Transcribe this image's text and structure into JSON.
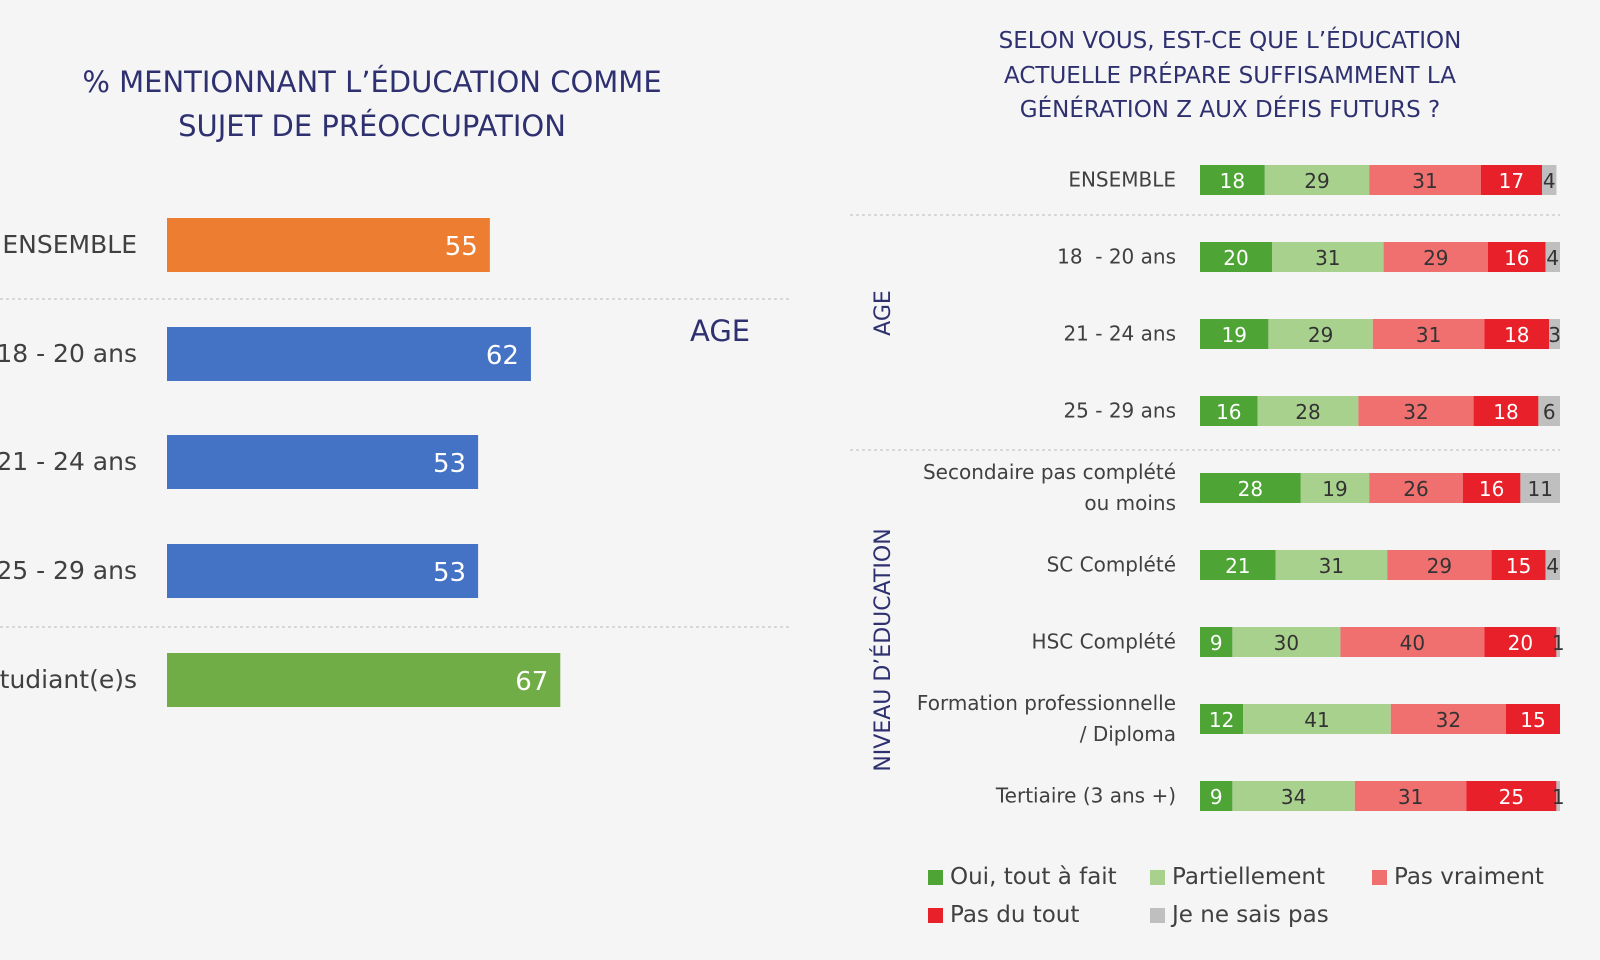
{
  "chart_data": [
    {
      "type": "bar",
      "orientation": "horizontal",
      "title": "% MENTIONNANT L’ÉDUCATION COMME SUJET DE PRÉOCCUPATION",
      "categories": [
        "ENSEMBLE",
        "18  - 20 ans",
        "21 - 24 ans",
        "25 - 29 ans",
        "Étudiant(e)s"
      ],
      "values": [
        55,
        62,
        53,
        53,
        67
      ],
      "colors": [
        "#ed7d31",
        "#4472c4",
        "#4472c4",
        "#4472c4",
        "#70ad47"
      ],
      "annotations": [
        "AGE"
      ]
    },
    {
      "type": "stacked-bar",
      "orientation": "horizontal",
      "title": "SELON VOUS, EST-CE QUE L’ÉDUCATION ACTUELLE PRÉPARE SUFFISAMMENT LA GÉNÉRATION Z AUX DÉFIS FUTURS ?",
      "categories": [
        "ENSEMBLE",
        "18  - 20 ans",
        "21 - 24 ans",
        "25 - 29 ans",
        "Secondaire pas complété\nou moins",
        "SC Complété",
        "HSC Complété",
        "Formation professionnelle\n/ Diploma",
        "Tertiaire (3 ans +)"
      ],
      "groups": [
        "AGE",
        "NIVEAU D’ÉDUCATION"
      ],
      "series": [
        {
          "name": "Oui, tout à fait",
          "color": "#4ea435",
          "values": [
            18,
            20,
            19,
            16,
            28,
            21,
            9,
            12,
            9
          ]
        },
        {
          "name": "Partiellement",
          "color": "#a9d18e",
          "values": [
            29,
            31,
            29,
            28,
            19,
            31,
            30,
            41,
            34
          ]
        },
        {
          "name": "Pas vraiment",
          "color": "#f07070",
          "values": [
            31,
            29,
            31,
            32,
            26,
            29,
            40,
            32,
            31
          ]
        },
        {
          "name": "Pas du tout",
          "color": "#e8202a",
          "values": [
            17,
            16,
            18,
            18,
            16,
            15,
            20,
            15,
            25
          ]
        },
        {
          "name": "Je ne sais pas",
          "color": "#bfbfbf",
          "values": [
            4,
            4,
            3,
            6,
            11,
            4,
            1,
            null,
            1
          ]
        }
      ]
    }
  ]
}
